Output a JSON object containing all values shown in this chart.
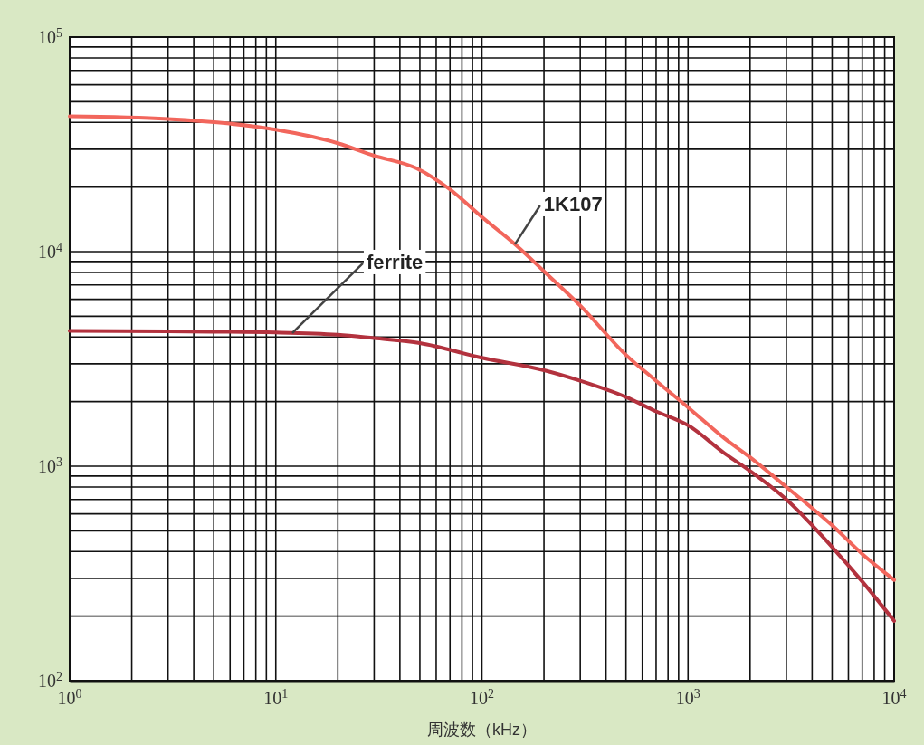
{
  "chart_data": {
    "type": "line",
    "xlabel": "周波数（kHz）",
    "log": "xy",
    "grid": true,
    "marker": "none",
    "line_style": "solid",
    "xlim": [
      1,
      10000
    ],
    "ylim": [
      100,
      100000
    ],
    "xticks": [
      {
        "value": 1,
        "label": "10$^{0}$"
      },
      {
        "value": 2,
        "label": null
      },
      {
        "value": 3,
        "label": null
      },
      {
        "value": 4,
        "label": null
      },
      {
        "value": 5,
        "label": null
      },
      {
        "value": 6,
        "label": null
      },
      {
        "value": 7,
        "label": null
      },
      {
        "value": 8,
        "label": null
      },
      {
        "value": 9,
        "label": null
      },
      {
        "value": 10,
        "label": "10$^{1}$"
      },
      {
        "value": 20,
        "label": null
      },
      {
        "value": 30,
        "label": null
      },
      {
        "value": 40,
        "label": null
      },
      {
        "value": 50,
        "label": null
      },
      {
        "value": 60,
        "label": null
      },
      {
        "value": 70,
        "label": null
      },
      {
        "value": 80,
        "label": null
      },
      {
        "value": 90,
        "label": null
      },
      {
        "value": 100,
        "label": "10$^{2}$"
      },
      {
        "value": 200,
        "label": null
      },
      {
        "value": 300,
        "label": null
      },
      {
        "value": 400,
        "label": null
      },
      {
        "value": 500,
        "label": null
      },
      {
        "value": 600,
        "label": null
      },
      {
        "value": 700,
        "label": null
      },
      {
        "value": 800,
        "label": null
      },
      {
        "value": 900,
        "label": null
      },
      {
        "value": 1000,
        "label": "10$^{3}$"
      },
      {
        "value": 2000,
        "label": null
      },
      {
        "value": 3000,
        "label": null
      },
      {
        "value": 4000,
        "label": null
      },
      {
        "value": 5000,
        "label": null
      },
      {
        "value": 6000,
        "label": null
      },
      {
        "value": 7000,
        "label": null
      },
      {
        "value": 8000,
        "label": null
      },
      {
        "value": 9000,
        "label": null
      },
      {
        "value": 10000,
        "label": "10$^{4}$"
      }
    ],
    "yticks": [
      {
        "value": 100,
        "label": "10$^{2}$"
      },
      {
        "value": 200,
        "label": null
      },
      {
        "value": 300,
        "label": null
      },
      {
        "value": 400,
        "label": null
      },
      {
        "value": 500,
        "label": null
      },
      {
        "value": 600,
        "label": null
      },
      {
        "value": 700,
        "label": null
      },
      {
        "value": 800,
        "label": null
      },
      {
        "value": 900,
        "label": null
      },
      {
        "value": 1000,
        "label": "10$^{3}$"
      },
      {
        "value": 2000,
        "label": null
      },
      {
        "value": 3000,
        "label": null
      },
      {
        "value": 4000,
        "label": null
      },
      {
        "value": 5000,
        "label": null
      },
      {
        "value": 6000,
        "label": null
      },
      {
        "value": 7000,
        "label": null
      },
      {
        "value": 8000,
        "label": null
      },
      {
        "value": 9000,
        "label": null
      },
      {
        "value": 10000,
        "label": "10$^{4}$"
      },
      {
        "value": 20000,
        "label": null
      },
      {
        "value": 30000,
        "label": null
      },
      {
        "value": 40000,
        "label": null
      },
      {
        "value": 50000,
        "label": null
      },
      {
        "value": 60000,
        "label": null
      },
      {
        "value": 70000,
        "label": null
      },
      {
        "value": 80000,
        "label": null
      },
      {
        "value": 90000,
        "label": null
      },
      {
        "value": 100000,
        "label": "10$^{5}$"
      }
    ],
    "series": [
      {
        "name": "1K107",
        "color": "#f2665c",
        "x": [
          1,
          3,
          10,
          20,
          30,
          48,
          70,
          100,
          150,
          200,
          300,
          500,
          700,
          1000,
          1500,
          2000,
          3000,
          5000,
          7000,
          10000
        ],
        "values": [
          42700,
          41500,
          37000,
          32000,
          28000,
          24500,
          19500,
          14500,
          10500,
          8100,
          5600,
          3300,
          2500,
          1880,
          1350,
          1100,
          800,
          530,
          390,
          295
        ]
      },
      {
        "name": "ferrite",
        "color": "#b3323e",
        "x": [
          1,
          3,
          10,
          20,
          30,
          50,
          100,
          200,
          300,
          500,
          700,
          1000,
          1500,
          2000,
          3000,
          5000,
          7000,
          10000
        ],
        "values": [
          4270,
          4250,
          4200,
          4100,
          3950,
          3750,
          3200,
          2800,
          2500,
          2100,
          1800,
          1550,
          1150,
          950,
          700,
          420,
          290,
          190
        ]
      }
    ]
  }
}
